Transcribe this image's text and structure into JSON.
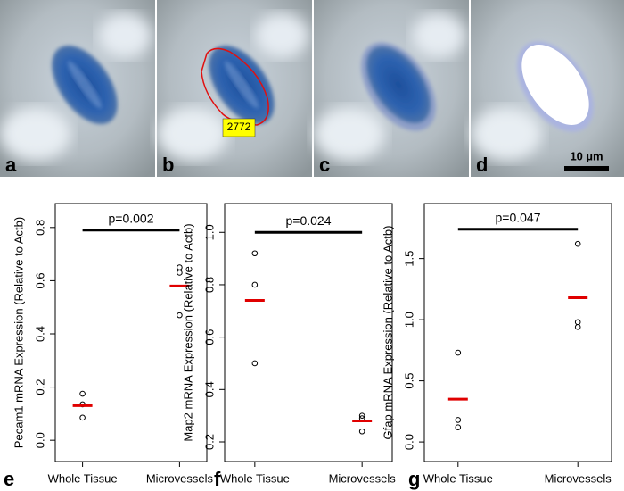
{
  "micrographs": {
    "panels": [
      "a",
      "b",
      "c",
      "d"
    ],
    "annotation": "2772",
    "scale_bar": "10 µm"
  },
  "chart_data": [
    {
      "type": "strip",
      "panel_label": "e",
      "ylabel": "Pecam1 mRNA Expression (Relative to Actb)",
      "categories": [
        "Whole Tissue",
        "Microvessels"
      ],
      "values": [
        [
          0.175,
          0.135,
          0.085
        ],
        [
          0.65,
          0.63,
          0.47
        ]
      ],
      "means": [
        0.13,
        0.58
      ],
      "point_color": "#000000",
      "mean_color": "#e00000",
      "ylim": [
        -0.08,
        0.89
      ],
      "yticks": [
        {
          "value": 0,
          "label": "0.0"
        },
        0.2,
        0.4,
        0.6,
        0.8
      ],
      "annotation": {
        "text": "p=0.002",
        "y": 0.79
      }
    },
    {
      "type": "strip",
      "panel_label": "f",
      "ylabel": "Map2 mRNA Expression (Relative to Actb)",
      "categories": [
        "Whole Tissue",
        "Microvessels"
      ],
      "values": [
        [
          0.92,
          0.8,
          0.5
        ],
        [
          0.3,
          0.29,
          0.24
        ]
      ],
      "means": [
        0.74,
        0.28
      ],
      "point_color": "#000000",
      "mean_color": "#e00000",
      "ylim": [
        0.125,
        1.11
      ],
      "yticks": [
        0.2,
        0.4,
        0.6,
        0.8,
        {
          "value": 1,
          "label": "1.0"
        }
      ],
      "annotation": {
        "text": "p=0.024",
        "y": 1.0
      }
    },
    {
      "type": "strip",
      "panel_label": "g",
      "ylabel": "Gfap mRNA Expression (Relative to Actb)",
      "categories": [
        "Whole Tissue",
        "Microvessels"
      ],
      "values": [
        [
          0.73,
          0.18,
          0.12
        ],
        [
          1.62,
          0.98,
          0.94
        ]
      ],
      "means": [
        0.35,
        1.18
      ],
      "point_color": "#000000",
      "mean_color": "#e00000",
      "ylim": [
        -0.16,
        1.95
      ],
      "yticks": [
        {
          "value": 0,
          "label": "0.0"
        },
        0.5,
        {
          "value": 1,
          "label": "1.0"
        },
        1.5
      ],
      "annotation": {
        "text": "p=0.047",
        "y": 1.74
      }
    }
  ]
}
